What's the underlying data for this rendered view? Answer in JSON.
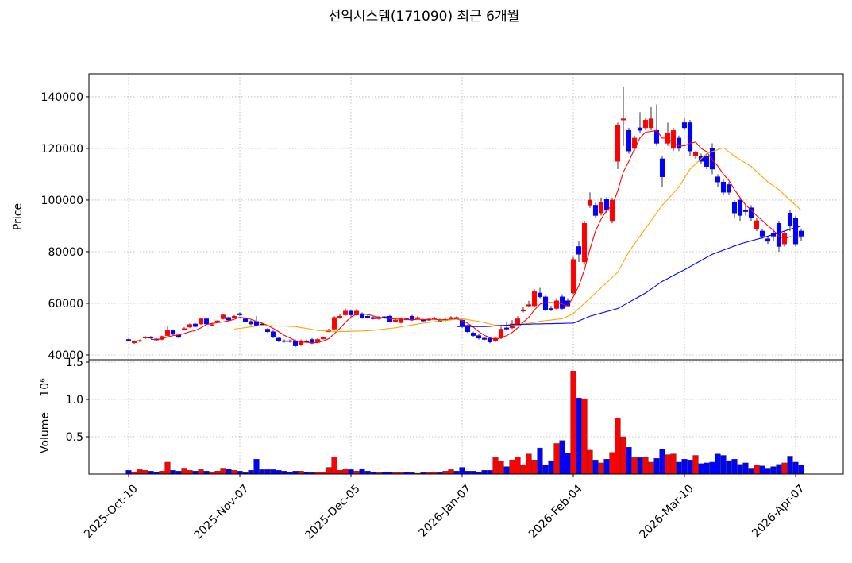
{
  "chart_data": {
    "type": "candlestick",
    "title": "선익시스템(171090) 최근 6개월",
    "categories": [
      "2025-Oct-10",
      null,
      null,
      null,
      null,
      null,
      null,
      null,
      null,
      null,
      null,
      null,
      null,
      null,
      null,
      null,
      null,
      null,
      null,
      null,
      "2025-Nov-07",
      null,
      null,
      null,
      null,
      null,
      null,
      null,
      null,
      null,
      null,
      null,
      null,
      null,
      null,
      null,
      null,
      null,
      null,
      null,
      "2025-Dec-05",
      null,
      null,
      null,
      null,
      null,
      null,
      null,
      null,
      null,
      null,
      null,
      null,
      null,
      null,
      null,
      null,
      null,
      null,
      null,
      "2026-Jan-07",
      null,
      null,
      null,
      null,
      null,
      null,
      null,
      null,
      null,
      null,
      null,
      null,
      null,
      null,
      null,
      null,
      null,
      null,
      null,
      "2026-Feb-04",
      null,
      null,
      null,
      null,
      null,
      null,
      null,
      null,
      null,
      null,
      null,
      null,
      null,
      null,
      null,
      null,
      null,
      null,
      null,
      "2026-Mar-10",
      null,
      null,
      null,
      null,
      null,
      null,
      null,
      null,
      null,
      null,
      null,
      null,
      null,
      null,
      null,
      null,
      null,
      null,
      null,
      "2026-Apr-07",
      null
    ],
    "open": [
      46000,
      44700,
      45300,
      46500,
      47000,
      46200,
      46000,
      47500,
      49500,
      47800,
      49800,
      50800,
      52000,
      52000,
      54000,
      51500,
      52800,
      54000,
      54500,
      54500,
      56000,
      54000,
      53000,
      53000,
      52000,
      50000,
      49000,
      46500,
      45500,
      45500,
      45500,
      43800,
      45500,
      46000,
      44800,
      46200,
      49000,
      50000,
      54500,
      55500,
      57000,
      55500,
      56000,
      55000,
      54500,
      54000,
      54800,
      55000,
      53000,
      52500,
      54000,
      55000,
      54000,
      53500,
      53500,
      54000,
      53500,
      53300,
      54000,
      54500,
      53500,
      51500,
      48500,
      47500,
      46500,
      46500,
      45500,
      46500,
      50500,
      50500,
      52000,
      57000,
      59000,
      59000,
      64000,
      62500,
      58000,
      58000,
      62500,
      61000,
      64000,
      82000,
      76000,
      98000,
      98000,
      95000,
      100500,
      92000,
      115000,
      131000,
      127000,
      120000,
      128000,
      128000,
      128000,
      127000,
      116000,
      122000,
      120000,
      124000,
      130000,
      130000,
      117000,
      117000,
      117000,
      120000,
      109000,
      107000,
      106000,
      99000,
      100000,
      96000,
      97000,
      89000,
      88000,
      85000,
      87000,
      91000,
      83000,
      95000,
      93000,
      88000
    ],
    "high": [
      46300,
      45600,
      46000,
      47300,
      47300,
      46500,
      47500,
      51000,
      49800,
      48000,
      50800,
      52200,
      52300,
      54500,
      54300,
      52300,
      53500,
      56000,
      54800,
      55500,
      56500,
      54500,
      53500,
      55000,
      52500,
      50500,
      49500,
      47000,
      46000,
      46000,
      46000,
      46000,
      46000,
      46500,
      46500,
      47200,
      50200,
      55000,
      55800,
      58000,
      57500,
      57800,
      56500,
      55500,
      55000,
      55000,
      55000,
      55500,
      54000,
      54500,
      54500,
      55500,
      55000,
      54000,
      54200,
      54800,
      54000,
      54200,
      55000,
      55000,
      53800,
      51800,
      49000,
      48000,
      47000,
      47000,
      47000,
      51000,
      53000,
      53500,
      55000,
      58500,
      61000,
      65500,
      66000,
      63000,
      59000,
      62000,
      63500,
      62000,
      78000,
      84000,
      92000,
      103000,
      99000,
      101000,
      101000,
      101000,
      130000,
      144000,
      128000,
      125000,
      134000,
      132000,
      136000,
      137000,
      117000,
      130000,
      128000,
      125000,
      132000,
      131000,
      119000,
      118000,
      118000,
      122000,
      110000,
      108000,
      107000,
      100000,
      101000,
      98000,
      98000,
      93000,
      89000,
      86000,
      89000,
      92000,
      88000,
      96000,
      94000,
      89000
    ],
    "low": [
      45200,
      44300,
      45000,
      46200,
      46200,
      45500,
      45700,
      47200,
      47700,
      46500,
      49500,
      50500,
      50700,
      51700,
      51700,
      51300,
      52500,
      53700,
      53200,
      54200,
      55200,
      52500,
      51500,
      51000,
      51300,
      48500,
      46500,
      45000,
      44800,
      44800,
      43000,
      43500,
      44700,
      44200,
      44500,
      46000,
      48800,
      49800,
      54000,
      55200,
      55000,
      55200,
      54000,
      54000,
      53700,
      53700,
      54000,
      52500,
      52700,
      52200,
      53400,
      53200,
      53700,
      52800,
      53200,
      53700,
      52700,
      53000,
      53800,
      53700,
      50500,
      48500,
      47000,
      46000,
      45700,
      44500,
      45000,
      46200,
      49500,
      50000,
      51500,
      56500,
      58500,
      58500,
      62000,
      57000,
      57000,
      57500,
      57500,
      58500,
      63500,
      76000,
      75000,
      97000,
      93000,
      94000,
      95000,
      91000,
      112000,
      121000,
      118000,
      119000,
      126000,
      127000,
      127000,
      121000,
      105000,
      121000,
      119000,
      119000,
      127000,
      117000,
      116000,
      114000,
      112000,
      110000,
      105000,
      102000,
      102000,
      93000,
      92000,
      94000,
      92000,
      88000,
      85000,
      83000,
      84000,
      80000,
      82000,
      88000,
      82000,
      84000
    ],
    "close": [
      45500,
      45300,
      45600,
      47000,
      46500,
      45800,
      47200,
      49500,
      48000,
      46800,
      50200,
      51800,
      51000,
      54000,
      52000,
      51800,
      53200,
      55500,
      53500,
      55000,
      55500,
      53000,
      52000,
      51500,
      51800,
      49000,
      47000,
      45500,
      45200,
      45200,
      43500,
      45500,
      45000,
      44500,
      46000,
      46800,
      49500,
      54500,
      55000,
      57000,
      55500,
      57000,
      54500,
      54500,
      54000,
      54500,
      54300,
      53000,
      53500,
      54000,
      53800,
      53500,
      54500,
      53200,
      53800,
      54300,
      53000,
      53800,
      54500,
      54000,
      51000,
      49000,
      47500,
      46500,
      46000,
      45000,
      46500,
      50000,
      50000,
      52000,
      54000,
      57500,
      59500,
      64500,
      62500,
      57500,
      57500,
      61000,
      58000,
      59000,
      77000,
      79000,
      91000,
      100000,
      94000,
      99000,
      96000,
      100000,
      129000,
      131500,
      119000,
      124000,
      127000,
      131000,
      131500,
      122000,
      109000,
      126000,
      127000,
      120000,
      128000,
      119000,
      118500,
      115000,
      113000,
      112000,
      107000,
      103000,
      103000,
      95000,
      94000,
      95500,
      93000,
      92000,
      86000,
      84000,
      86000,
      82000,
      87000,
      90000,
      83000,
      86000
    ],
    "up_color": "#ff0000",
    "down_color": "#0000ff",
    "moving_averages": [
      {
        "color": "#ff0000",
        "values": [
          null,
          null,
          null,
          null,
          46000,
          46000,
          46200,
          47000,
          47500,
          47700,
          48300,
          49000,
          49500,
          50500,
          51800,
          52200,
          52500,
          52800,
          53200,
          53800,
          54600,
          54300,
          53800,
          53000,
          52300,
          51500,
          50300,
          49000,
          47600,
          46600,
          45500,
          45000,
          44900,
          44700,
          44800,
          45400,
          46300,
          48200,
          50300,
          52600,
          54700,
          55800,
          55800,
          55700,
          55100,
          54600,
          54300,
          54100,
          53900,
          53900,
          53700,
          53600,
          53800,
          53700,
          53800,
          53800,
          53600,
          53600,
          53800,
          53900,
          53300,
          52300,
          50800,
          49000,
          47600,
          46700,
          45900,
          46700,
          47500,
          48700,
          50500,
          52700,
          54600,
          57400,
          59700,
          60300,
          60300,
          60200,
          59800,
          59000,
          62500,
          66800,
          73000,
          81000,
          88000,
          92600,
          96000,
          97800,
          103600,
          110900,
          115000,
          119700,
          124100,
          126300,
          126600,
          127000,
          124000,
          124000,
          122000,
          121000,
          121000,
          122000,
          122500,
          120000,
          118700,
          115500,
          113200,
          110000,
          107600,
          104000,
          101000,
          98100,
          96100,
          93900,
          92100,
          90100,
          88300,
          86000,
          85000,
          85800,
          85600,
          85600
        ]
      },
      {
        "color": "#ffa500",
        "values": [
          null,
          null,
          null,
          null,
          null,
          null,
          null,
          null,
          null,
          null,
          null,
          null,
          null,
          null,
          null,
          null,
          null,
          null,
          null,
          50000,
          50300,
          50600,
          50900,
          51200,
          51500,
          51400,
          51300,
          51200,
          51200,
          51100,
          51000,
          50600,
          50300,
          49900,
          49500,
          49400,
          49300,
          49100,
          49000,
          49100,
          49200,
          49200,
          49300,
          49400,
          49500,
          49800,
          50000,
          50300,
          50500,
          50900,
          51300,
          51600,
          52000,
          52300,
          52600,
          52900,
          53200,
          53400,
          53600,
          53800,
          54000,
          53700,
          53300,
          53000,
          52500,
          52000,
          51500,
          51500,
          51500,
          51500,
          51500,
          51900,
          52300,
          52600,
          53000,
          53300,
          53500,
          53800,
          54000,
          55000,
          56000,
          58000,
          60000,
          62000,
          64000,
          66000,
          68000,
          70000,
          72000,
          76000,
          80000,
          83000,
          86000,
          89000,
          92000,
          95000,
          98000,
          100300,
          102700,
          105000,
          108500,
          112000,
          114000,
          116000,
          118000,
          118800,
          119500,
          120300,
          118700,
          117000,
          115700,
          114300,
          113000,
          111000,
          109000,
          107000,
          105500,
          104000,
          102000,
          100000,
          98000,
          96000
        ]
      },
      {
        "color": "#0000ff",
        "values": [
          null,
          null,
          null,
          null,
          null,
          null,
          null,
          null,
          null,
          null,
          null,
          null,
          null,
          null,
          null,
          null,
          null,
          null,
          null,
          null,
          null,
          null,
          null,
          null,
          null,
          null,
          null,
          null,
          null,
          null,
          null,
          null,
          null,
          null,
          null,
          null,
          null,
          null,
          null,
          null,
          null,
          null,
          null,
          null,
          null,
          null,
          null,
          null,
          null,
          null,
          null,
          null,
          null,
          null,
          null,
          null,
          null,
          null,
          null,
          51000,
          51000,
          51000,
          51000,
          51000,
          51000,
          51100,
          51300,
          51400,
          51500,
          51700,
          51800,
          51900,
          51900,
          52000,
          52000,
          52100,
          52100,
          52200,
          52200,
          52300,
          52300,
          53200,
          54100,
          55000,
          55600,
          56200,
          56800,
          57400,
          58000,
          59200,
          60400,
          61600,
          62800,
          64000,
          65500,
          67000,
          68500,
          69600,
          70800,
          71900,
          73000,
          74200,
          75400,
          76600,
          77800,
          79000,
          79800,
          80600,
          81400,
          82200,
          83000,
          83600,
          84200,
          84800,
          85400,
          86000,
          86700,
          87300,
          88000,
          88700,
          89300,
          90000
        ]
      }
    ],
    "ylabel": "Price",
    "ylim": [
      38150,
      148900
    ],
    "yticks": [
      40000,
      60000,
      80000,
      100000,
      120000,
      140000
    ],
    "grid": true,
    "volume": {
      "ylabel": "Volume",
      "offset_label": "10⁶",
      "ylim": [
        0,
        1532000
      ],
      "yticks": [
        {
          "value": 500000,
          "label": "0.5"
        },
        {
          "value": 1000000,
          "label": "1.0"
        },
        {
          "value": 1500000,
          "label": "1.5"
        }
      ],
      "values": [
        50000,
        30000,
        60000,
        50000,
        40000,
        30000,
        40000,
        160000,
        50000,
        40000,
        80000,
        50000,
        40000,
        60000,
        40000,
        30000,
        40000,
        80000,
        70000,
        50000,
        40000,
        20000,
        50000,
        200000,
        60000,
        60000,
        60000,
        50000,
        40000,
        30000,
        40000,
        40000,
        30000,
        20000,
        30000,
        30000,
        90000,
        230000,
        50000,
        70000,
        60000,
        40000,
        70000,
        40000,
        30000,
        20000,
        30000,
        30000,
        20000,
        20000,
        30000,
        20000,
        10000,
        20000,
        20000,
        20000,
        20000,
        40000,
        60000,
        40000,
        90000,
        40000,
        40000,
        30000,
        50000,
        50000,
        220000,
        170000,
        100000,
        190000,
        230000,
        120000,
        270000,
        190000,
        350000,
        120000,
        180000,
        410000,
        450000,
        280000,
        1380000,
        1020000,
        1010000,
        320000,
        190000,
        150000,
        200000,
        290000,
        750000,
        500000,
        360000,
        220000,
        220000,
        230000,
        160000,
        210000,
        330000,
        260000,
        270000,
        160000,
        200000,
        190000,
        250000,
        140000,
        150000,
        160000,
        270000,
        250000,
        180000,
        200000,
        130000,
        150000,
        80000,
        120000,
        110000,
        80000,
        100000,
        130000,
        150000,
        240000,
        160000,
        120000
      ]
    }
  }
}
